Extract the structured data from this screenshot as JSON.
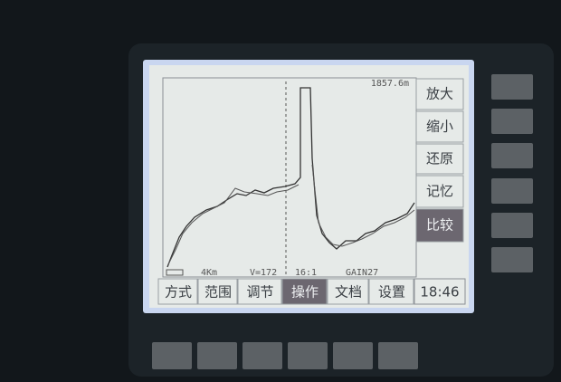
{
  "screen": {
    "distance": "1857.6m",
    "side_menu": [
      "放大",
      "缩小",
      "还原",
      "记忆",
      "比较"
    ],
    "bottom_menu": [
      "方式",
      "范围",
      "调节",
      "操作",
      "文档",
      "设置"
    ],
    "time": "18:46",
    "status": {
      "range": "4Km",
      "velocity": "V=172",
      "ratio": "16:1",
      "gain": "GAIN27"
    }
  }
}
